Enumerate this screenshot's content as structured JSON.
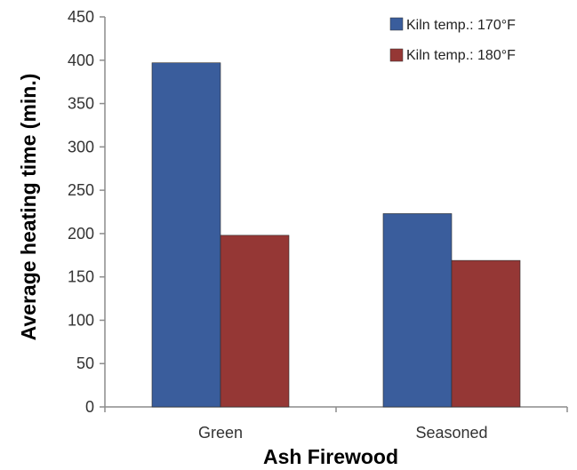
{
  "chart_data": {
    "type": "bar",
    "title": "",
    "xlabel": "Ash Firewood",
    "ylabel": "Average heating time (min.)",
    "categories": [
      "Green",
      "Seasoned"
    ],
    "series": [
      {
        "name": "Kiln temp.: 170°F",
        "values": [
          397,
          223
        ],
        "color": "#3a5d9c"
      },
      {
        "name": "Kiln temp.: 180°F",
        "values": [
          198,
          169
        ],
        "color": "#953735"
      }
    ],
    "ylim": [
      0,
      450
    ],
    "yticks": [
      0,
      50,
      100,
      150,
      200,
      250,
      300,
      350,
      400,
      450
    ],
    "grid": false,
    "legend_position": "top-right"
  }
}
